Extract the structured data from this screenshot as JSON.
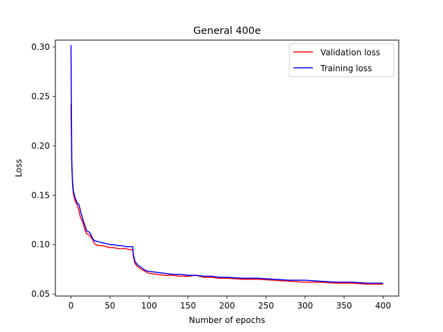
{
  "chart_data": {
    "type": "line",
    "title": "General 400e",
    "xlabel": "Number of epochs",
    "ylabel": "Loss",
    "xlim": [
      -20,
      420
    ],
    "ylim": [
      0.048,
      0.307
    ],
    "xticks": [
      0,
      50,
      100,
      150,
      200,
      250,
      300,
      350,
      400
    ],
    "xtick_labels": [
      "0",
      "50",
      "100",
      "150",
      "200",
      "250",
      "300",
      "350",
      "400"
    ],
    "yticks": [
      0.05,
      0.1,
      0.15,
      0.2,
      0.25,
      0.3
    ],
    "ytick_labels": [
      "0.05",
      "0.10",
      "0.15",
      "0.20",
      "0.25",
      "0.30"
    ],
    "grid": false,
    "legend_position": "top-right",
    "series": [
      {
        "name": "Validation loss",
        "color": "#ff0000",
        "points": [
          [
            0,
            0.242
          ],
          [
            1,
            0.18
          ],
          [
            2,
            0.16
          ],
          [
            3,
            0.152
          ],
          [
            5,
            0.145
          ],
          [
            8,
            0.14
          ],
          [
            10,
            0.135
          ],
          [
            12,
            0.128
          ],
          [
            15,
            0.123
          ],
          [
            18,
            0.115
          ],
          [
            20,
            0.111
          ],
          [
            23,
            0.11
          ],
          [
            25,
            0.108
          ],
          [
            28,
            0.105
          ],
          [
            30,
            0.101
          ],
          [
            35,
            0.099
          ],
          [
            40,
            0.099
          ],
          [
            45,
            0.098
          ],
          [
            50,
            0.097
          ],
          [
            55,
            0.097
          ],
          [
            60,
            0.096
          ],
          [
            65,
            0.096
          ],
          [
            70,
            0.096
          ],
          [
            75,
            0.095
          ],
          [
            79,
            0.095
          ],
          [
            80,
            0.088
          ],
          [
            82,
            0.081
          ],
          [
            85,
            0.078
          ],
          [
            90,
            0.075
          ],
          [
            95,
            0.073
          ],
          [
            100,
            0.071
          ],
          [
            110,
            0.07
          ],
          [
            120,
            0.069
          ],
          [
            130,
            0.069
          ],
          [
            140,
            0.068
          ],
          [
            150,
            0.068
          ],
          [
            160,
            0.069
          ],
          [
            170,
            0.067
          ],
          [
            180,
            0.067
          ],
          [
            190,
            0.066
          ],
          [
            200,
            0.066
          ],
          [
            220,
            0.065
          ],
          [
            240,
            0.065
          ],
          [
            260,
            0.064
          ],
          [
            280,
            0.063
          ],
          [
            300,
            0.062
          ],
          [
            320,
            0.062
          ],
          [
            340,
            0.061
          ],
          [
            360,
            0.061
          ],
          [
            380,
            0.06
          ],
          [
            390,
            0.06
          ],
          [
            400,
            0.06
          ]
        ]
      },
      {
        "name": "Training loss",
        "color": "#0000ff",
        "points": [
          [
            0,
            0.302
          ],
          [
            1,
            0.185
          ],
          [
            2,
            0.164
          ],
          [
            3,
            0.155
          ],
          [
            5,
            0.148
          ],
          [
            8,
            0.142
          ],
          [
            10,
            0.141
          ],
          [
            12,
            0.135
          ],
          [
            15,
            0.126
          ],
          [
            18,
            0.119
          ],
          [
            20,
            0.114
          ],
          [
            23,
            0.113
          ],
          [
            25,
            0.111
          ],
          [
            28,
            0.106
          ],
          [
            30,
            0.104
          ],
          [
            35,
            0.103
          ],
          [
            40,
            0.102
          ],
          [
            45,
            0.101
          ],
          [
            50,
            0.1
          ],
          [
            55,
            0.1
          ],
          [
            60,
            0.099
          ],
          [
            65,
            0.099
          ],
          [
            70,
            0.098
          ],
          [
            75,
            0.098
          ],
          [
            79,
            0.098
          ],
          [
            80,
            0.09
          ],
          [
            82,
            0.083
          ],
          [
            85,
            0.08
          ],
          [
            90,
            0.077
          ],
          [
            95,
            0.074
          ],
          [
            100,
            0.073
          ],
          [
            110,
            0.072
          ],
          [
            120,
            0.071
          ],
          [
            130,
            0.07
          ],
          [
            140,
            0.07
          ],
          [
            150,
            0.069
          ],
          [
            160,
            0.069
          ],
          [
            170,
            0.068
          ],
          [
            180,
            0.068
          ],
          [
            190,
            0.067
          ],
          [
            200,
            0.067
          ],
          [
            220,
            0.066
          ],
          [
            240,
            0.066
          ],
          [
            260,
            0.065
          ],
          [
            280,
            0.064
          ],
          [
            300,
            0.064
          ],
          [
            320,
            0.063
          ],
          [
            340,
            0.062
          ],
          [
            360,
            0.062
          ],
          [
            380,
            0.061
          ],
          [
            390,
            0.061
          ],
          [
            400,
            0.061
          ]
        ]
      }
    ]
  }
}
